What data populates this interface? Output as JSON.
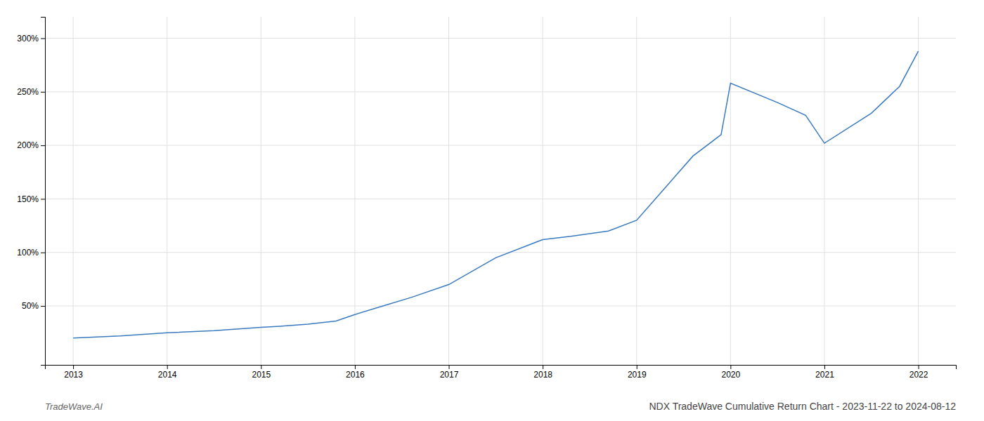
{
  "chart_data": {
    "type": "line",
    "title": "NDX TradeWave Cumulative Return Chart - 2023-11-22 to 2024-08-12",
    "annotations": [
      "TradeWave.AI"
    ],
    "x": [
      2013.0,
      2013.5,
      2014.0,
      2014.5,
      2015.0,
      2015.2,
      2015.5,
      2015.8,
      2016.0,
      2016.3,
      2016.6,
      2017.0,
      2017.5,
      2018.0,
      2018.3,
      2018.7,
      2019.0,
      2019.3,
      2019.6,
      2019.9,
      2020.0,
      2020.5,
      2020.8,
      2021.0,
      2021.5,
      2021.8,
      2022.0
    ],
    "values": [
      20,
      22,
      25,
      27,
      30,
      31,
      33,
      36,
      42,
      50,
      58,
      70,
      95,
      112,
      115,
      120,
      130,
      160,
      190,
      210,
      258,
      240,
      228,
      202,
      230,
      255,
      288
    ],
    "color": "#3a7abf",
    "xlim": [
      2012.7,
      2022.4
    ],
    "ylim": [
      -5,
      320
    ],
    "xticks": [
      2013,
      2014,
      2015,
      2016,
      2017,
      2018,
      2019,
      2020,
      2021,
      2022
    ],
    "yticks": [
      {
        "value": 50,
        "label": "50%"
      },
      {
        "value": 100,
        "label": "100%"
      },
      {
        "value": 150,
        "label": "150%"
      },
      {
        "value": 200,
        "label": "200%"
      },
      {
        "value": 250,
        "label": "250%"
      },
      {
        "value": 300,
        "label": "300%"
      }
    ],
    "grid": true
  }
}
